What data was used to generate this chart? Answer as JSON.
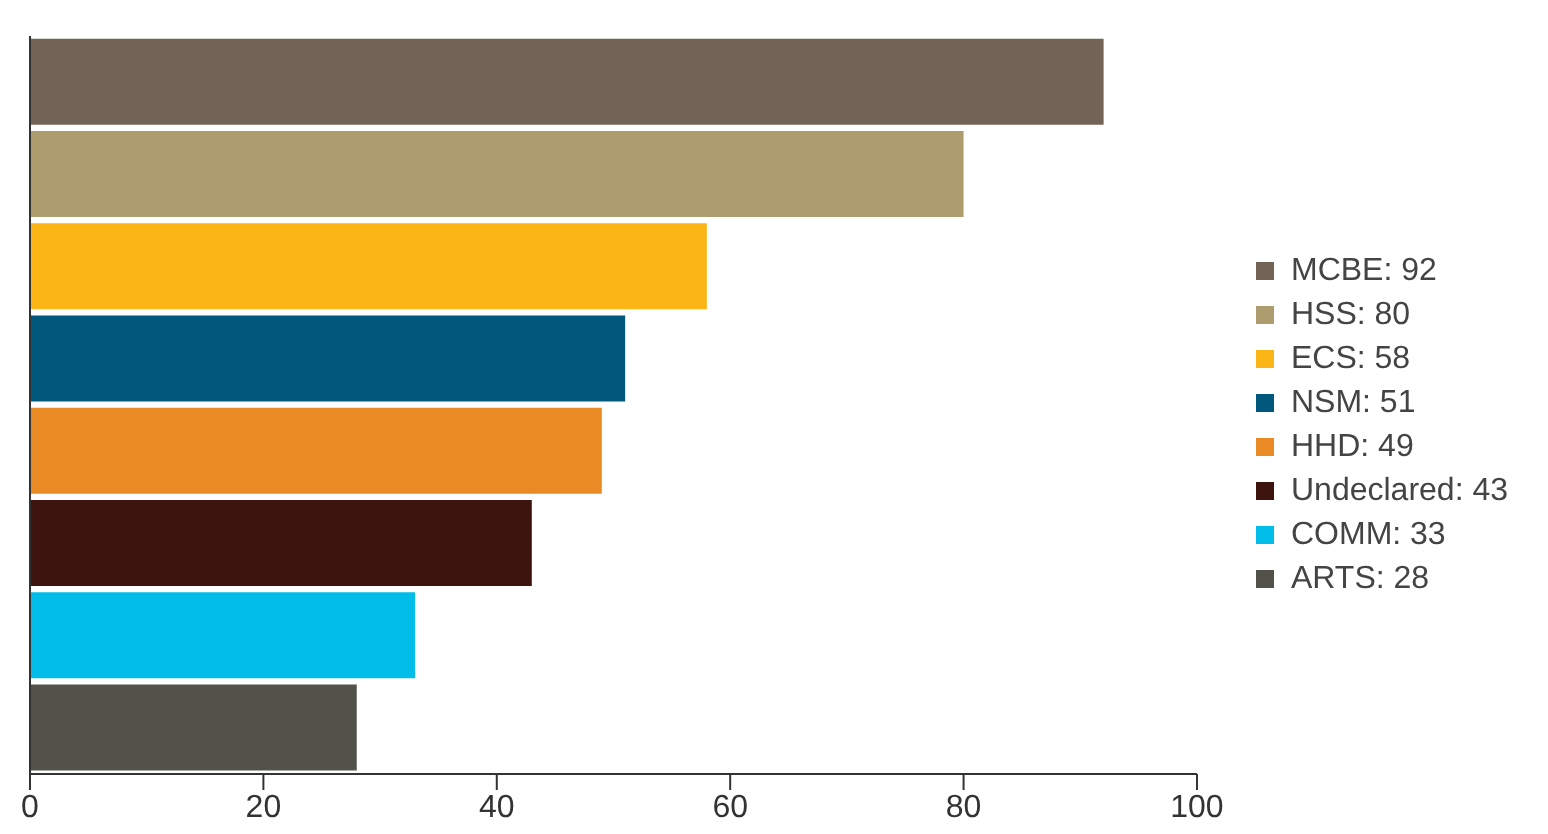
{
  "chart_data": {
    "type": "bar",
    "orientation": "horizontal",
    "stacked": true,
    "tick_labels": "x",
    "categories": [
      null,
      null,
      null,
      null,
      null,
      null,
      null,
      null
    ],
    "series": [
      {
        "name": "MCBE: 92",
        "color": "#736357",
        "values": [
          92,
          null,
          null,
          null,
          null,
          null,
          null,
          null
        ]
      },
      {
        "name": "HSS: 80",
        "color": "#ad9d6e",
        "values": [
          null,
          80,
          null,
          null,
          null,
          null,
          null,
          null
        ]
      },
      {
        "name": "ECS: 58",
        "color": "#fbb516",
        "values": [
          null,
          null,
          58,
          null,
          null,
          null,
          null,
          null
        ]
      },
      {
        "name": "NSM: 51",
        "color": "#00587c",
        "values": [
          null,
          null,
          null,
          51,
          null,
          null,
          null,
          null
        ]
      },
      {
        "name": "HHD: 49",
        "color": "#e98a25",
        "values": [
          null,
          null,
          null,
          null,
          49,
          null,
          null,
          null
        ]
      },
      {
        "name": "Undeclared: 43",
        "color": "#3d130e",
        "values": [
          null,
          null,
          null,
          null,
          null,
          43,
          null,
          null
        ]
      },
      {
        "name": "COMM: 33",
        "color": "#00bce8",
        "values": [
          null,
          null,
          null,
          null,
          null,
          null,
          33,
          null
        ]
      },
      {
        "name": "ARTS: 28",
        "color": "#52524a",
        "values": [
          null,
          null,
          null,
          null,
          null,
          null,
          null,
          28
        ]
      }
    ],
    "xlim": [
      0,
      100
    ],
    "xticks": [
      0,
      20,
      40,
      60,
      80,
      100
    ],
    "grid": false,
    "legend": "right"
  }
}
